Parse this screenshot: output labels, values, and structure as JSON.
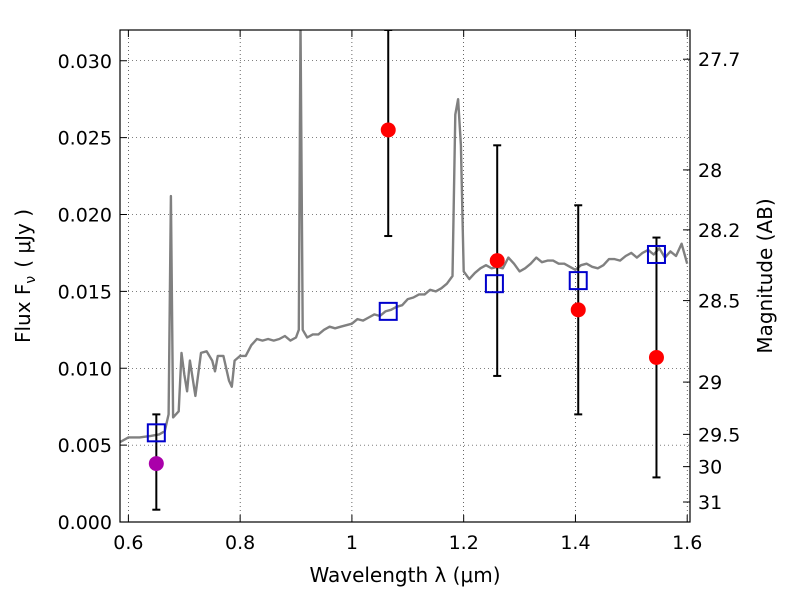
{
  "chart_data": {
    "type": "scatter",
    "xlabel": "Wavelength  λ (μm)",
    "ylabel_left": "Flux  F",
    "ylabel_left_sub": "ν",
    "ylabel_left_unit": "( μJy )",
    "ylabel_right": "Magnitude (AB)",
    "xlim": [
      0.585,
      1.605
    ],
    "ylim": [
      0.0,
      0.032
    ],
    "grid": true,
    "x_ticks": [
      0.6,
      0.8,
      1.0,
      1.2,
      1.4,
      1.6
    ],
    "x_tick_labels": [
      "0.6",
      "0.8",
      "1",
      "1.2",
      "1.4",
      "1.6"
    ],
    "y_ticks": [
      0.0,
      0.005,
      0.01,
      0.015,
      0.02,
      0.025,
      0.03
    ],
    "y_tick_labels": [
      "0.000",
      "0.005",
      "0.010",
      "0.015",
      "0.020",
      "0.025",
      "0.030"
    ],
    "right_ticks": [
      {
        "label": "27.7",
        "flux": 0.0301
      },
      {
        "label": "28",
        "flux": 0.0229
      },
      {
        "label": "28.2",
        "flux": 0.019
      },
      {
        "label": "28.5",
        "flux": 0.0144
      },
      {
        "label": "29",
        "flux": 0.0091
      },
      {
        "label": "29.5",
        "flux": 0.0057
      },
      {
        "label": "30",
        "flux": 0.0036
      },
      {
        "label": "31",
        "flux": 0.0013
      }
    ],
    "model_spectrum": {
      "name": "",
      "color": "#808080",
      "points": [
        [
          0.585,
          0.0052
        ],
        [
          0.6,
          0.0055
        ],
        [
          0.62,
          0.0055
        ],
        [
          0.64,
          0.0056
        ],
        [
          0.655,
          0.0057
        ],
        [
          0.665,
          0.0059
        ],
        [
          0.672,
          0.007
        ],
        [
          0.676,
          0.0212
        ],
        [
          0.68,
          0.0068
        ],
        [
          0.69,
          0.0072
        ],
        [
          0.695,
          0.011
        ],
        [
          0.7,
          0.0096
        ],
        [
          0.705,
          0.0085
        ],
        [
          0.71,
          0.0105
        ],
        [
          0.72,
          0.0082
        ],
        [
          0.73,
          0.011
        ],
        [
          0.74,
          0.0111
        ],
        [
          0.75,
          0.0105
        ],
        [
          0.755,
          0.0098
        ],
        [
          0.76,
          0.0108
        ],
        [
          0.77,
          0.0108
        ],
        [
          0.78,
          0.0092
        ],
        [
          0.785,
          0.0088
        ],
        [
          0.79,
          0.0105
        ],
        [
          0.8,
          0.0108
        ],
        [
          0.81,
          0.0108
        ],
        [
          0.82,
          0.0115
        ],
        [
          0.83,
          0.0119
        ],
        [
          0.84,
          0.0118
        ],
        [
          0.85,
          0.0119
        ],
        [
          0.86,
          0.0118
        ],
        [
          0.87,
          0.0119
        ],
        [
          0.88,
          0.0121
        ],
        [
          0.89,
          0.0118
        ],
        [
          0.9,
          0.012
        ],
        [
          0.905,
          0.0125
        ],
        [
          0.908,
          0.0325
        ],
        [
          0.912,
          0.0125
        ],
        [
          0.92,
          0.012
        ],
        [
          0.93,
          0.0122
        ],
        [
          0.94,
          0.0122
        ],
        [
          0.95,
          0.0125
        ],
        [
          0.96,
          0.0127
        ],
        [
          0.97,
          0.0126
        ],
        [
          0.98,
          0.0127
        ],
        [
          0.99,
          0.0128
        ],
        [
          1.0,
          0.0129
        ],
        [
          1.01,
          0.0132
        ],
        [
          1.02,
          0.0131
        ],
        [
          1.03,
          0.0133
        ],
        [
          1.04,
          0.0135
        ],
        [
          1.05,
          0.0134
        ],
        [
          1.06,
          0.0137
        ],
        [
          1.07,
          0.0138
        ],
        [
          1.08,
          0.014
        ],
        [
          1.09,
          0.0141
        ],
        [
          1.1,
          0.0145
        ],
        [
          1.11,
          0.0146
        ],
        [
          1.12,
          0.0148
        ],
        [
          1.13,
          0.0148
        ],
        [
          1.14,
          0.0151
        ],
        [
          1.15,
          0.015
        ],
        [
          1.16,
          0.0152
        ],
        [
          1.17,
          0.0155
        ],
        [
          1.18,
          0.016
        ],
        [
          1.185,
          0.0265
        ],
        [
          1.19,
          0.0275
        ],
        [
          1.195,
          0.0245
        ],
        [
          1.2,
          0.0163
        ],
        [
          1.21,
          0.0158
        ],
        [
          1.22,
          0.0162
        ],
        [
          1.23,
          0.0165
        ],
        [
          1.24,
          0.0167
        ],
        [
          1.25,
          0.0165
        ],
        [
          1.26,
          0.0166
        ],
        [
          1.27,
          0.0165
        ],
        [
          1.28,
          0.0172
        ],
        [
          1.29,
          0.0168
        ],
        [
          1.3,
          0.0163
        ],
        [
          1.31,
          0.0165
        ],
        [
          1.32,
          0.0168
        ],
        [
          1.33,
          0.0172
        ],
        [
          1.34,
          0.0169
        ],
        [
          1.35,
          0.017
        ],
        [
          1.36,
          0.017
        ],
        [
          1.37,
          0.0168
        ],
        [
          1.38,
          0.0168
        ],
        [
          1.39,
          0.0166
        ],
        [
          1.4,
          0.0164
        ],
        [
          1.41,
          0.0167
        ],
        [
          1.42,
          0.0168
        ],
        [
          1.43,
          0.0166
        ],
        [
          1.44,
          0.0165
        ],
        [
          1.45,
          0.0167
        ],
        [
          1.46,
          0.0171
        ],
        [
          1.47,
          0.0171
        ],
        [
          1.48,
          0.017
        ],
        [
          1.49,
          0.0173
        ],
        [
          1.5,
          0.0175
        ],
        [
          1.51,
          0.0172
        ],
        [
          1.52,
          0.0175
        ],
        [
          1.53,
          0.0177
        ],
        [
          1.54,
          0.0174
        ],
        [
          1.55,
          0.0178
        ],
        [
          1.56,
          0.0172
        ],
        [
          1.57,
          0.0176
        ],
        [
          1.58,
          0.0173
        ],
        [
          1.59,
          0.0181
        ],
        [
          1.6,
          0.0168
        ]
      ]
    },
    "model_bands": {
      "name": "",
      "color": "#0000cc",
      "marker": "open-square",
      "points": [
        [
          0.65,
          0.0058
        ],
        [
          1.065,
          0.0137
        ],
        [
          1.255,
          0.0155
        ],
        [
          1.405,
          0.0157
        ],
        [
          1.545,
          0.0174
        ]
      ]
    },
    "observed": {
      "name": "",
      "marker": "filled-circle",
      "points": [
        {
          "x": 0.65,
          "y": 0.0038,
          "err_low": 0.0008,
          "err_high": 0.007,
          "color": "#aa00aa"
        },
        {
          "x": 1.065,
          "y": 0.0255,
          "err_low": 0.0186,
          "err_high": 0.032,
          "color": "#ff0000"
        },
        {
          "x": 1.26,
          "y": 0.017,
          "err_low": 0.0095,
          "err_high": 0.0245,
          "color": "#ff0000"
        },
        {
          "x": 1.405,
          "y": 0.0138,
          "err_low": 0.007,
          "err_high": 0.0206,
          "color": "#ff0000"
        },
        {
          "x": 1.545,
          "y": 0.0107,
          "err_low": 0.0029,
          "err_high": 0.0185,
          "color": "#ff0000"
        }
      ]
    }
  }
}
